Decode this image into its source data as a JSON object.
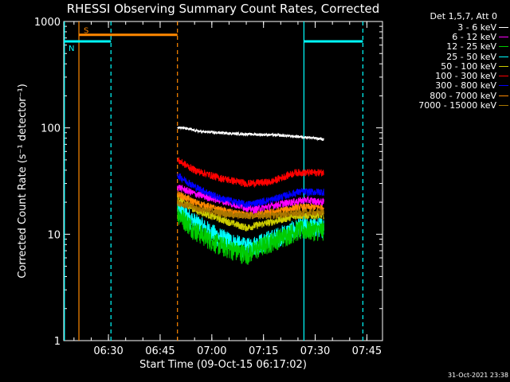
{
  "chart_data": {
    "type": "line",
    "title": "RHESSI Observing Summary Count Rates, Corrected",
    "xlabel": "Start Time (09-Oct-15 06:17:02)",
    "ylabel": "Corrected Count Rate (s⁻¹ detector⁻¹)",
    "yscale": "log",
    "ylim": [
      1,
      1000
    ],
    "xlim_minutes": [
      0,
      92.5
    ],
    "x_tick_labels": [
      "06:30",
      "06:45",
      "07:00",
      "07:15",
      "07:30",
      "07:45"
    ],
    "x_tick_minutes": [
      12.97,
      27.97,
      42.97,
      57.97,
      72.97,
      87.97
    ],
    "y_tick_labels": [
      "1",
      "10",
      "100",
      "1000"
    ],
    "y_tick_values": [
      1,
      10,
      100,
      1000
    ],
    "legend_header": "Det 1,5,7, Att 0",
    "data_start_minute": 33.0,
    "data_end_minute": 75.5,
    "series": [
      {
        "name": "3 - 6 keV",
        "color": "#ffffff",
        "values_at_minutes": [
          [
            33,
            102
          ],
          [
            40,
            92
          ],
          [
            50,
            88
          ],
          [
            60,
            86
          ],
          [
            70,
            82
          ],
          [
            75.5,
            78
          ]
        ]
      },
      {
        "name": "6 - 12 keV",
        "color": "#ff00ff",
        "values_at_minutes": [
          [
            33,
            28
          ],
          [
            38,
            24
          ],
          [
            45,
            21
          ],
          [
            55,
            17
          ],
          [
            62,
            19
          ],
          [
            70,
            21
          ],
          [
            75.5,
            20
          ]
        ]
      },
      {
        "name": "12 - 25 keV",
        "color": "#00cc00",
        "values_at_minutes": [
          [
            33,
            16
          ],
          [
            38,
            11
          ],
          [
            45,
            8
          ],
          [
            53,
            6.5
          ],
          [
            60,
            8.5
          ],
          [
            68,
            11
          ],
          [
            75.5,
            11
          ]
        ]
      },
      {
        "name": "25 - 50 keV",
        "color": "#00ffff",
        "values_at_minutes": [
          [
            33,
            18
          ],
          [
            38,
            13
          ],
          [
            45,
            9.5
          ],
          [
            53,
            7.5
          ],
          [
            60,
            9
          ],
          [
            68,
            11.5
          ],
          [
            75.5,
            12
          ]
        ]
      },
      {
        "name": "50 - 100 keV",
        "color": "#cccc00",
        "values_at_minutes": [
          [
            33,
            22
          ],
          [
            38,
            17
          ],
          [
            45,
            14
          ],
          [
            53,
            11.5
          ],
          [
            60,
            13
          ],
          [
            68,
            15
          ],
          [
            75.5,
            15
          ]
        ]
      },
      {
        "name": "100 - 300 keV",
        "color": "#ff0000",
        "values_at_minutes": [
          [
            33,
            50
          ],
          [
            38,
            40
          ],
          [
            45,
            34
          ],
          [
            53,
            30
          ],
          [
            60,
            31
          ],
          [
            67,
            38
          ],
          [
            75.5,
            38
          ]
        ]
      },
      {
        "name": "300 - 800 keV",
        "color": "#0000ff",
        "values_at_minutes": [
          [
            33,
            36
          ],
          [
            38,
            28
          ],
          [
            45,
            22
          ],
          [
            53,
            19
          ],
          [
            60,
            21
          ],
          [
            68,
            25
          ],
          [
            75.5,
            25
          ]
        ]
      },
      {
        "name": "800 - 7000 keV",
        "color": "#ff8800",
        "values_at_minutes": [
          [
            33,
            24
          ],
          [
            38,
            20
          ],
          [
            45,
            17
          ],
          [
            53,
            15
          ],
          [
            60,
            16
          ],
          [
            68,
            18
          ],
          [
            75.5,
            18
          ]
        ]
      },
      {
        "name": "7000 - 15000 keV",
        "color": "#aa7700",
        "values_at_minutes": [
          [
            33,
            20
          ],
          [
            40,
            17
          ],
          [
            50,
            15
          ],
          [
            60,
            15
          ],
          [
            70,
            16
          ],
          [
            75.5,
            16
          ]
        ]
      }
    ],
    "flags": [
      {
        "name": "S",
        "color": "#ff8800",
        "level": 750,
        "from_minute": 4.4,
        "to_minute": 33.0
      },
      {
        "name": "N",
        "color": "#00ffff",
        "level": 650,
        "from_minute": 0,
        "to_minute": 13.7
      },
      {
        "name": "",
        "color": "#00ffff",
        "level": 650,
        "from_minute": 69.7,
        "to_minute": 86.8
      }
    ],
    "vertical_markers": [
      {
        "color": "#00ffff",
        "style": "solid",
        "minute": 0.2
      },
      {
        "color": "#ff8800",
        "style": "solid",
        "minute": 4.4
      },
      {
        "color": "#00ffff",
        "style": "dashed",
        "minute": 13.7
      },
      {
        "color": "#ff8800",
        "style": "dashed",
        "minute": 33.0
      },
      {
        "color": "#00ffff",
        "style": "solid",
        "minute": 69.7
      },
      {
        "color": "#00ffff",
        "style": "dashed",
        "minute": 86.8
      }
    ],
    "timestamp": "31-Oct-2021 23:38"
  }
}
